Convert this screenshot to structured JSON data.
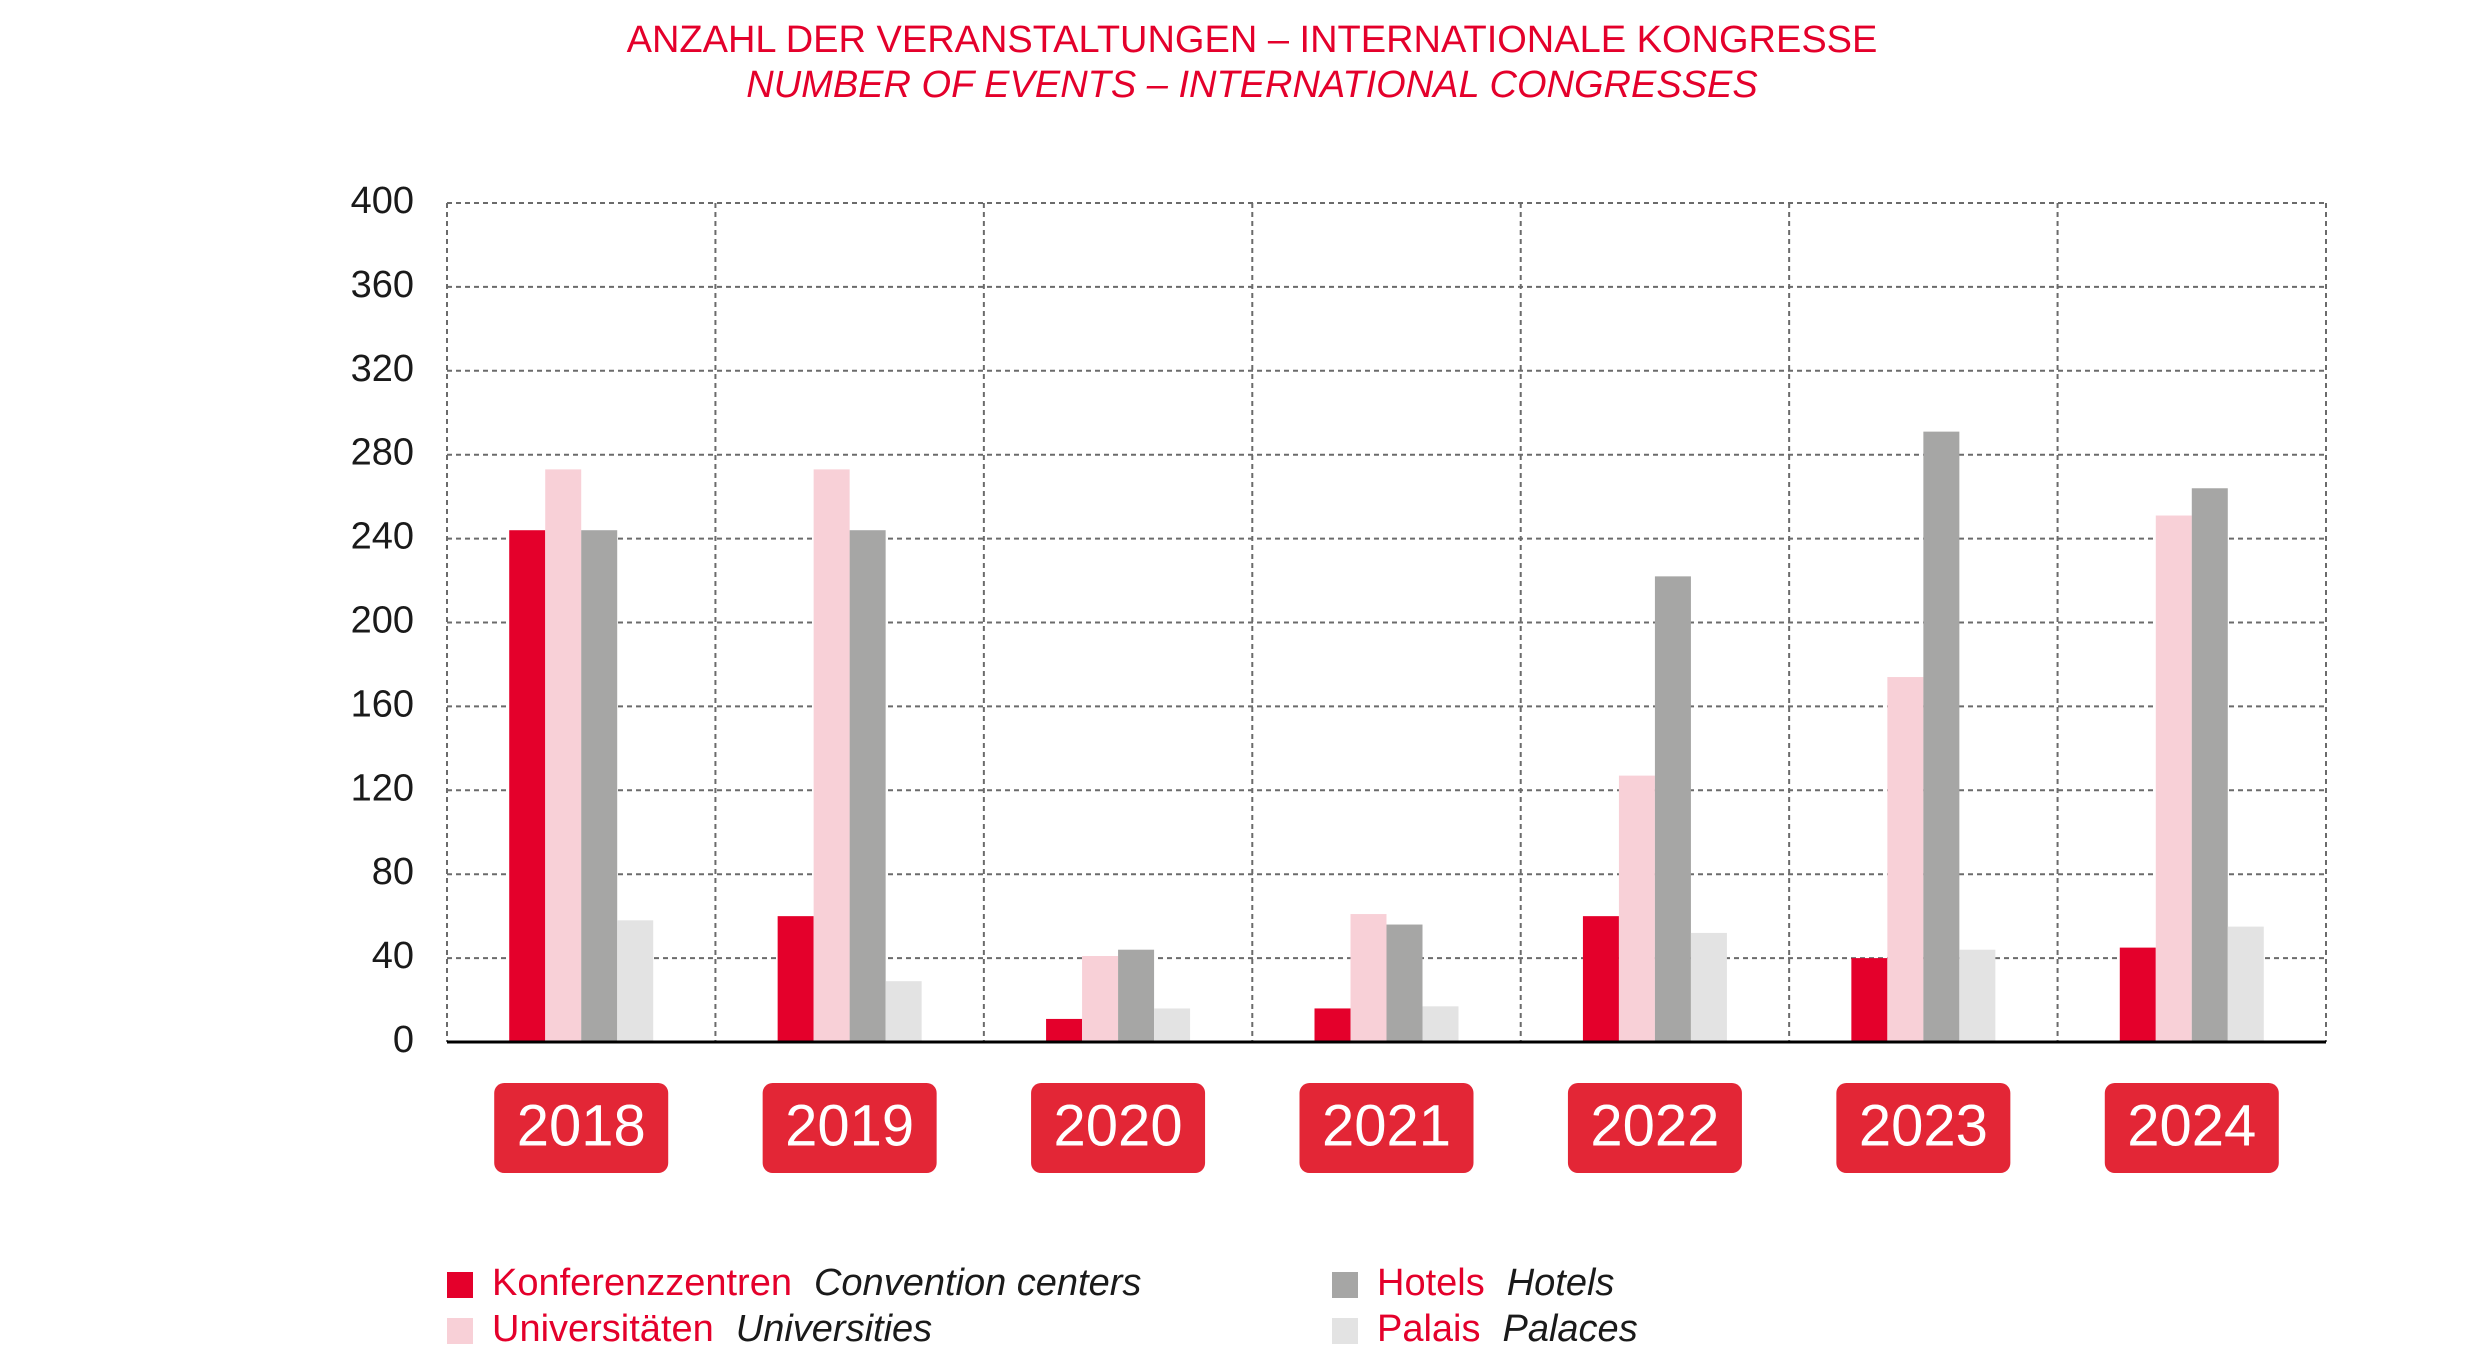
{
  "chart_data": {
    "type": "bar",
    "title": "ANZAHL DER VERANSTALTUNGEN – INTERNATIONALE KONGRESSE",
    "subtitle": "NUMBER OF EVENTS – INTERNATIONAL CONGRESSES",
    "xlabel": "",
    "ylabel": "",
    "categories": [
      "2018",
      "2019",
      "2020",
      "2021",
      "2022",
      "2023",
      "2024"
    ],
    "yticks": [
      "0",
      "40",
      "80",
      "120",
      "160",
      "200",
      "240",
      "280",
      "320",
      "360",
      "400"
    ],
    "ylim": [
      0,
      400
    ],
    "grid": true,
    "legend_position": "bottom-left",
    "series": [
      {
        "name": "Konferenzzentren",
        "name_en": "Convention centers",
        "color": "#e4002b",
        "values": [
          244,
          60,
          11,
          16,
          60,
          40,
          45
        ]
      },
      {
        "name": "Universitäten",
        "name_en": "Universities",
        "color": "#f8d0d7",
        "values": [
          273,
          273,
          41,
          61,
          127,
          174,
          251
        ]
      },
      {
        "name": "Hotels",
        "name_en": "Hotels",
        "color": "#a6a6a5",
        "values": [
          244,
          244,
          44,
          56,
          222,
          291,
          264
        ]
      },
      {
        "name": "Palais",
        "name_en": "Palaces",
        "color": "#e3e3e3",
        "values": [
          58,
          29,
          16,
          17,
          52,
          44,
          55
        ]
      }
    ],
    "category_label_bg": "#e32636"
  }
}
